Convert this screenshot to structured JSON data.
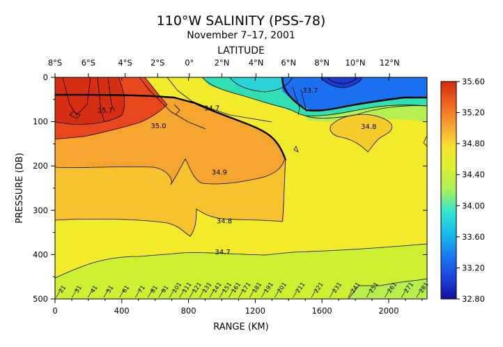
{
  "chart_data": {
    "type": "contour",
    "title": "110°W SALINITY (PSS-78)",
    "subtitle": "November 7–17, 2001",
    "top_axis_label": "LATITUDE",
    "xlabel": "RANGE (KM)",
    "ylabel": "PRESSURE (DB)",
    "xlim": [
      0,
      2230
    ],
    "ylim": [
      0,
      500
    ],
    "y_inverted": true,
    "x_ticks": [
      "0",
      "400",
      "800",
      "1200",
      "1600",
      "2000"
    ],
    "x_tick_values": [
      0,
      400,
      800,
      1200,
      1600,
      2000
    ],
    "y_ticks": [
      "0",
      "100",
      "200",
      "300",
      "400",
      "500"
    ],
    "y_tick_values": [
      0,
      100,
      200,
      300,
      400,
      500
    ],
    "latitude_ticks": [
      "8°S",
      "6°S",
      "4°S",
      "2°S",
      "0°",
      "2°N",
      "4°N",
      "6°N",
      "8°N",
      "10°N",
      "12°N"
    ],
    "latitude_tick_km": [
      0,
      200,
      420,
      615,
      805,
      1000,
      1205,
      1400,
      1600,
      1800,
      2005
    ],
    "colorbar": {
      "range": [
        32.8,
        35.6
      ],
      "ticks": [
        "35.60",
        "35.20",
        "34.80",
        "34.40",
        "34.00",
        "33.60",
        "33.20",
        "32.80"
      ],
      "tick_values": [
        35.6,
        35.2,
        34.8,
        34.4,
        34.0,
        33.6,
        33.2,
        32.8
      ]
    },
    "contour_labels": [
      {
        "text": "35.7",
        "x": 300,
        "y": 75
      },
      {
        "text": "35.0",
        "x": 620,
        "y": 110
      },
      {
        "text": "34.7",
        "x": 940,
        "y": 70
      },
      {
        "text": "34.9",
        "x": 985,
        "y": 215
      },
      {
        "text": "34.8",
        "x": 1015,
        "y": 325
      },
      {
        "text": "34.7",
        "x": 1005,
        "y": 395
      },
      {
        "text": "34.8",
        "x": 1880,
        "y": 112
      },
      {
        "text": "33.7",
        "x": 1530,
        "y": 30
      }
    ],
    "station_labels": [
      "21",
      "31",
      "41",
      "51",
      "61",
      "71",
      "81",
      "91",
      "101",
      "111",
      "121",
      "131",
      "141",
      "151",
      "161",
      "171",
      "181",
      "191",
      "201",
      "211",
      "221",
      "231",
      "241",
      "251",
      "261",
      "271",
      "281"
    ],
    "station_km": [
      40,
      135,
      230,
      325,
      420,
      515,
      590,
      655,
      720,
      780,
      840,
      900,
      960,
      1020,
      1075,
      1135,
      1200,
      1270,
      1350,
      1460,
      1570,
      1680,
      1790,
      1900,
      2010,
      2110,
      2200
    ]
  }
}
